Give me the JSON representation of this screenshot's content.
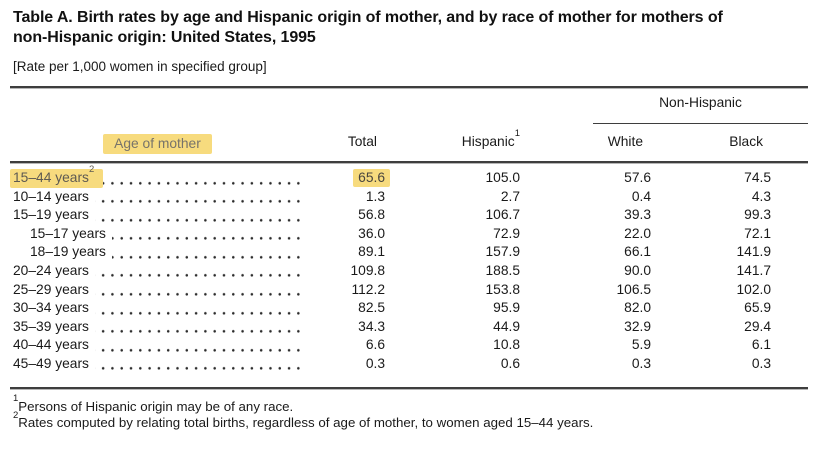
{
  "title": "Table A. Birth rates by age and Hispanic origin of mother, and by race of mother for mothers of non-Hispanic origin: United States, 1995",
  "unit_note": "[Rate per 1,000 women in specified group]",
  "highlight_color": "#F7DB7E",
  "table": {
    "row_header_label": "Age of mother",
    "spanner": "Non-Hispanic",
    "columns": [
      "Total",
      "Hispanic",
      "White",
      "Black"
    ],
    "hispanic_footnote_marker": "1",
    "rows": [
      {
        "label": "15–44 years",
        "label_footnote_marker": "2",
        "indent": false,
        "highlighted": true,
        "values": {
          "total": "65.6",
          "hispanic": "105.0",
          "white": "57.6",
          "black": "74.5"
        }
      },
      {
        "label": "10–14 years",
        "indent": false,
        "highlighted": false,
        "values": {
          "total": "1.3",
          "hispanic": "2.7",
          "white": "0.4",
          "black": "4.3"
        }
      },
      {
        "label": "15–19 years",
        "indent": false,
        "highlighted": false,
        "values": {
          "total": "56.8",
          "hispanic": "106.7",
          "white": "39.3",
          "black": "99.3"
        }
      },
      {
        "label": "15–17 years",
        "indent": true,
        "highlighted": false,
        "values": {
          "total": "36.0",
          "hispanic": "72.9",
          "white": "22.0",
          "black": "72.1"
        }
      },
      {
        "label": "18–19 years",
        "indent": true,
        "highlighted": false,
        "values": {
          "total": "89.1",
          "hispanic": "157.9",
          "white": "66.1",
          "black": "141.9"
        }
      },
      {
        "label": "20–24 years",
        "indent": false,
        "highlighted": false,
        "values": {
          "total": "109.8",
          "hispanic": "188.5",
          "white": "90.0",
          "black": "141.7"
        }
      },
      {
        "label": "25–29 years",
        "indent": false,
        "highlighted": false,
        "values": {
          "total": "112.2",
          "hispanic": "153.8",
          "white": "106.5",
          "black": "102.0"
        }
      },
      {
        "label": "30–34 years",
        "indent": false,
        "highlighted": false,
        "values": {
          "total": "82.5",
          "hispanic": "95.9",
          "white": "82.0",
          "black": "65.9"
        }
      },
      {
        "label": "35–39 years",
        "indent": false,
        "highlighted": false,
        "values": {
          "total": "34.3",
          "hispanic": "44.9",
          "white": "32.9",
          "black": "29.4"
        }
      },
      {
        "label": "40–44 years",
        "indent": false,
        "highlighted": false,
        "values": {
          "total": "6.6",
          "hispanic": "10.8",
          "white": "5.9",
          "black": "6.1"
        }
      },
      {
        "label": "45–49 years",
        "indent": false,
        "highlighted": false,
        "values": {
          "total": "0.3",
          "hispanic": "0.6",
          "white": "0.3",
          "black": "0.3"
        }
      }
    ]
  },
  "footnotes": [
    {
      "marker": "1",
      "text": "Persons of Hispanic origin may be of any race."
    },
    {
      "marker": "2",
      "text": "Rates computed by relating total births, regardless of age of mother, to women aged 15–44 years."
    }
  ]
}
